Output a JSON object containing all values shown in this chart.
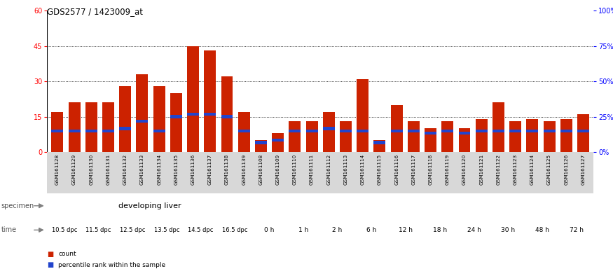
{
  "title": "GDS2577 / 1423009_at",
  "bar_labels": [
    "GSM161128",
    "GSM161129",
    "GSM161130",
    "GSM161131",
    "GSM161132",
    "GSM161133",
    "GSM161134",
    "GSM161135",
    "GSM161136",
    "GSM161137",
    "GSM161138",
    "GSM161139",
    "GSM161108",
    "GSM161109",
    "GSM161110",
    "GSM161111",
    "GSM161112",
    "GSM161113",
    "GSM161114",
    "GSM161115",
    "GSM161116",
    "GSM161117",
    "GSM161118",
    "GSM161119",
    "GSM161120",
    "GSM161121",
    "GSM161122",
    "GSM161123",
    "GSM161124",
    "GSM161125",
    "GSM161126",
    "GSM161127"
  ],
  "red_values": [
    17,
    21,
    21,
    21,
    28,
    33,
    28,
    25,
    45,
    43,
    32,
    17,
    5,
    8,
    13,
    13,
    17,
    13,
    31,
    5,
    20,
    13,
    10,
    13,
    10,
    14,
    21,
    13,
    14,
    13,
    14,
    16
  ],
  "blue_values": [
    9,
    9,
    9,
    9,
    10,
    13,
    9,
    15,
    16,
    16,
    15,
    9,
    4,
    5,
    9,
    9,
    10,
    9,
    9,
    4,
    9,
    9,
    8,
    9,
    8,
    9,
    9,
    9,
    9,
    9,
    9,
    9
  ],
  "ylim_max": 60,
  "yticks_left": [
    0,
    15,
    30,
    45,
    60
  ],
  "yticks_right": [
    0,
    25,
    50,
    75,
    100
  ],
  "dotted_lines": [
    15,
    30,
    45
  ],
  "bar_color": "#cc2200",
  "blue_color": "#2244cc",
  "bg_color": "#ffffff",
  "xtick_bg": "#d8d8d8",
  "dev_specimen_color": "#99ee99",
  "reg_specimen_color": "#44cc44",
  "dev_time_color": "#ee88ee",
  "reg_time_color_alt": "#ddaadd",
  "dev_time_labels": [
    "10.5 dpc",
    "11.5 dpc",
    "12.5 dpc",
    "13.5 dpc",
    "14.5 dpc",
    "16.5 dpc"
  ],
  "reg_time_labels": [
    "0 h",
    "1 h",
    "2 h",
    "6 h",
    "12 h",
    "18 h",
    "24 h",
    "30 h",
    "48 h",
    "72 h"
  ],
  "n_bars": 32,
  "n_dev": 12,
  "n_reg": 20,
  "legend_count_label": "count",
  "legend_pct_label": "percentile rank within the sample"
}
